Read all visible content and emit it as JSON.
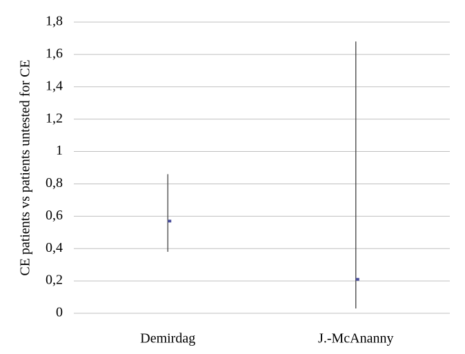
{
  "chart_data": {
    "type": "errorbar",
    "y_label": "CE patients vs patients untested for CE",
    "categories": [
      "Demirdag",
      "J.-McAnanny"
    ],
    "values": [
      0.57,
      0.21
    ],
    "low": [
      0.38,
      0.03
    ],
    "high": [
      0.86,
      1.68
    ],
    "color": "#4a4f9c",
    "error_color": "#404040",
    "ylim": [
      0,
      1.8
    ],
    "yticks": [
      0,
      {
        "value": 0.2,
        "label": "0,2"
      },
      {
        "value": 0.4,
        "label": "0,4"
      },
      {
        "value": 0.6,
        "label": "0,6"
      },
      {
        "value": 0.8,
        "label": "0,8"
      },
      1,
      {
        "value": 1.2,
        "label": "1,2"
      },
      {
        "value": 1.4,
        "label": "1,4"
      },
      {
        "value": 1.6,
        "label": "1,6"
      },
      {
        "value": 1.8,
        "label": "1,8"
      }
    ],
    "grid": true
  }
}
